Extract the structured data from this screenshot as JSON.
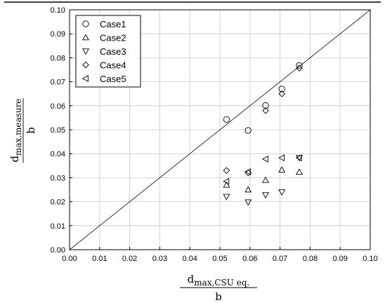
{
  "chart_data": {
    "type": "scatter",
    "title": "",
    "xlim": [
      0.0,
      0.1
    ],
    "ylim": [
      0.0,
      0.1
    ],
    "grid": true,
    "legend_position": "top-left",
    "x_ticks": [
      "0.00",
      "0.01",
      "0.02",
      "0.03",
      "0.04",
      "0.05",
      "0.06",
      "0.07",
      "0.08",
      "0.09",
      "0.10"
    ],
    "y_ticks": [
      "0.00",
      "0.01",
      "0.02",
      "0.03",
      "0.04",
      "0.05",
      "0.06",
      "0.07",
      "0.08",
      "0.09",
      "0.10"
    ],
    "xlabel": {
      "numerator": "d",
      "subscript": "max,CSU eq.",
      "denominator": "b"
    },
    "ylabel": {
      "numerator": "d",
      "subscript": "max,measure",
      "denominator": "b"
    },
    "reference_line": {
      "x": [
        0.0,
        0.1
      ],
      "y": [
        0.0,
        0.1
      ]
    },
    "series": [
      {
        "name": "Case1",
        "marker": "circle",
        "points": [
          [
            0.0522,
            0.0543
          ],
          [
            0.0594,
            0.0497
          ],
          [
            0.0652,
            0.0601
          ],
          [
            0.0706,
            0.067
          ],
          [
            0.0764,
            0.0768
          ]
        ]
      },
      {
        "name": "Case2",
        "marker": "triangle-up",
        "points": [
          [
            0.0522,
            0.027
          ],
          [
            0.0594,
            0.025
          ],
          [
            0.0652,
            0.029
          ],
          [
            0.0706,
            0.0333
          ],
          [
            0.0764,
            0.0324
          ]
        ]
      },
      {
        "name": "Case3",
        "marker": "triangle-down",
        "points": [
          [
            0.0522,
            0.0221
          ],
          [
            0.0594,
            0.0198
          ],
          [
            0.0652,
            0.0228
          ],
          [
            0.0706,
            0.024
          ],
          [
            0.0764,
            0.0383
          ]
        ]
      },
      {
        "name": "Case4",
        "marker": "diamond",
        "points": [
          [
            0.0522,
            0.033
          ],
          [
            0.0594,
            0.032
          ],
          [
            0.0652,
            0.058
          ],
          [
            0.0706,
            0.065
          ],
          [
            0.0764,
            0.0757
          ]
        ]
      },
      {
        "name": "Case5",
        "marker": "triangle-left",
        "points": [
          [
            0.0522,
            0.0285
          ],
          [
            0.0594,
            0.0325
          ],
          [
            0.0652,
            0.0378
          ],
          [
            0.0706,
            0.0383
          ],
          [
            0.0764,
            0.0383
          ]
        ]
      }
    ]
  }
}
